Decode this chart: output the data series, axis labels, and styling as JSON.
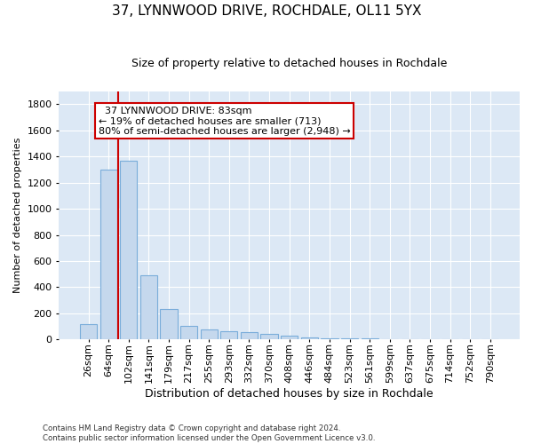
{
  "title1": "37, LYNNWOOD DRIVE, ROCHDALE, OL11 5YX",
  "title2": "Size of property relative to detached houses in Rochdale",
  "xlabel": "Distribution of detached houses by size in Rochdale",
  "ylabel": "Number of detached properties",
  "footnote1": "Contains HM Land Registry data © Crown copyright and database right 2024.",
  "footnote2": "Contains public sector information licensed under the Open Government Licence v3.0.",
  "bar_labels": [
    "26sqm",
    "64sqm",
    "102sqm",
    "141sqm",
    "179sqm",
    "217sqm",
    "255sqm",
    "293sqm",
    "332sqm",
    "370sqm",
    "408sqm",
    "446sqm",
    "484sqm",
    "523sqm",
    "561sqm",
    "599sqm",
    "637sqm",
    "675sqm",
    "714sqm",
    "752sqm",
    "790sqm"
  ],
  "bar_values": [
    120,
    1300,
    1370,
    490,
    230,
    100,
    75,
    65,
    55,
    40,
    30,
    15,
    5,
    5,
    5,
    2,
    2,
    2,
    2,
    2,
    2
  ],
  "bar_color": "#c5d8ed",
  "bar_edge_color": "#7aadda",
  "background_color": "#dce8f5",
  "grid_color": "#ffffff",
  "vline_x": 1.5,
  "vline_color": "#cc0000",
  "annotation_text": "  37 LYNNWOOD DRIVE: 83sqm\n← 19% of detached houses are smaller (713)\n80% of semi-detached houses are larger (2,948) →",
  "annotation_box_color": "#ffffff",
  "annotation_box_edge": "#cc0000",
  "ylim": [
    0,
    1900
  ],
  "yticks": [
    0,
    200,
    400,
    600,
    800,
    1000,
    1200,
    1400,
    1600,
    1800
  ],
  "title1_fontsize": 11,
  "title2_fontsize": 9,
  "xlabel_fontsize": 9,
  "ylabel_fontsize": 8,
  "tick_fontsize": 8,
  "annot_fontsize": 8
}
